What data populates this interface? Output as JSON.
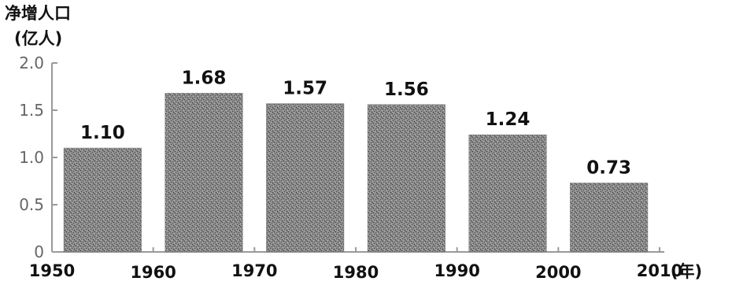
{
  "chart_data": {
    "type": "bar",
    "ylabel_line1": "净增人口",
    "ylabel_line2": "(亿人)",
    "x_unit": "(年)",
    "x_ticks": [
      "1950",
      "1960",
      "1970",
      "1980",
      "1990",
      "2000",
      "2010"
    ],
    "y_ticks": [
      "0",
      "0.5",
      "1.0",
      "1.5",
      "2.0"
    ],
    "y_tick_values": [
      0,
      0.5,
      1.0,
      1.5,
      2.0
    ],
    "ylim": [
      0,
      2.0
    ],
    "xlim": [
      1950,
      2010
    ],
    "bars": [
      {
        "x_start": 1950,
        "x_end": 1960,
        "value": 1.1,
        "label": "1.10"
      },
      {
        "x_start": 1960,
        "x_end": 1970,
        "value": 1.68,
        "label": "1.68"
      },
      {
        "x_start": 1970,
        "x_end": 1980,
        "value": 1.57,
        "label": "1.57"
      },
      {
        "x_start": 1980,
        "x_end": 1990,
        "value": 1.56,
        "label": "1.56"
      },
      {
        "x_start": 1990,
        "x_end": 2000,
        "value": 1.24,
        "label": "1.24"
      },
      {
        "x_start": 2000,
        "x_end": 2010,
        "value": 0.73,
        "label": "0.73"
      }
    ],
    "bar_color": "#7a7a7a",
    "axis_color": "#9a9a9a",
    "grid": false,
    "legend": "none"
  }
}
